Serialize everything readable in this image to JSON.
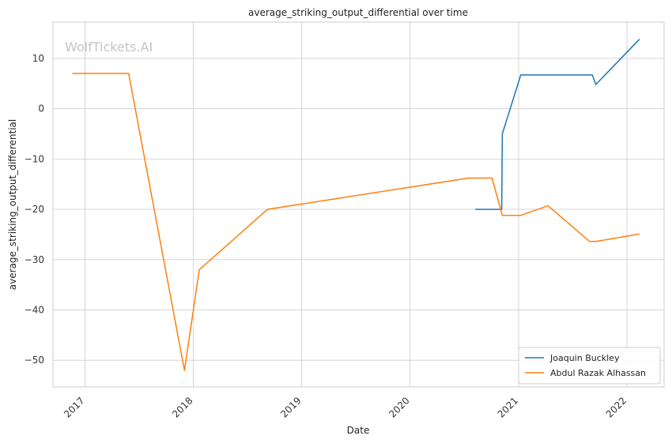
{
  "chart_data": {
    "type": "line",
    "title": "average_striking_output_differential over time",
    "xlabel": "Date",
    "ylabel": "average_striking_output_differential",
    "watermark": "WolfTickets.AI",
    "x_ticks": [
      "2017",
      "2018",
      "2019",
      "2020",
      "2021",
      "2022"
    ],
    "y_ticks": [
      10,
      0,
      -10,
      -20,
      -30,
      -40,
      -50
    ],
    "xlim": [
      "2016-09-15",
      "2022-05-06"
    ],
    "ylim": [
      -55.3,
      17.2
    ],
    "grid": true,
    "legend_position": "lower-right",
    "series": [
      {
        "name": "Joaquin Buckley",
        "color": "#1f77b4",
        "points": [
          [
            "2020-08-08",
            -20
          ],
          [
            "2020-11-05",
            -20
          ],
          [
            "2020-11-07",
            -5
          ],
          [
            "2021-01-08",
            6.7
          ],
          [
            "2021-09-06",
            6.7
          ],
          [
            "2021-09-18",
            4.8
          ],
          [
            "2022-02-12",
            13.8
          ]
        ]
      },
      {
        "name": "Abdul Razak Alhassan",
        "color": "#ff7f0e",
        "points": [
          [
            "2016-11-19",
            7
          ],
          [
            "2017-05-28",
            7
          ],
          [
            "2017-12-02",
            -52
          ],
          [
            "2018-01-21",
            -32
          ],
          [
            "2018-09-08",
            -20
          ],
          [
            "2020-07-16",
            -13.8
          ],
          [
            "2020-10-03",
            -13.8
          ],
          [
            "2020-11-07",
            -21.2
          ],
          [
            "2021-01-08",
            -21.2
          ],
          [
            "2021-04-10",
            -19.3
          ],
          [
            "2021-08-28",
            -26.4
          ],
          [
            "2021-09-18",
            -26.4
          ],
          [
            "2022-02-12",
            -24.9
          ]
        ]
      }
    ]
  }
}
